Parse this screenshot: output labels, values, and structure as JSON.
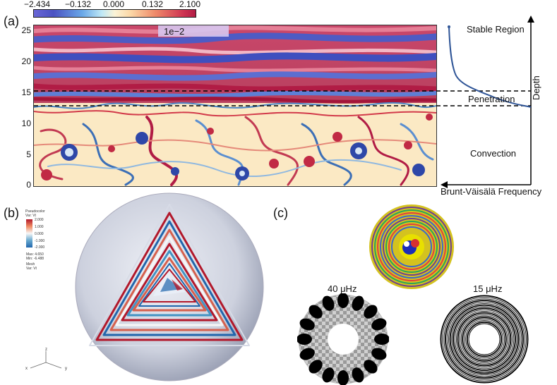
{
  "panel_a": {
    "label": "(a)",
    "colorbar": {
      "ticks": [
        "−2.434",
        "−0.132",
        "0.000",
        "0.132",
        "2.100"
      ],
      "multiplier": "1e−2"
    },
    "y_ticks": [
      "0",
      "5",
      "10",
      "15",
      "20",
      "25"
    ],
    "y_range": [
      0,
      26
    ],
    "boundaries": [
      12.6,
      15.0
    ],
    "profile": {
      "regions": [
        "Stable Region",
        "Penetration",
        "Convection"
      ],
      "y_axis_label": "Depth",
      "x_axis_label": "Brunt-Väisälä Frequency"
    }
  },
  "panel_b": {
    "label": "(b)",
    "legend": {
      "title_line1": "Pseudocolor",
      "title_line2": "Var: Vt",
      "ticks": [
        "2.000",
        "1.000",
        "0.000",
        "-1.000",
        "-2.000"
      ],
      "max": "Max: 4.650",
      "min": "Min: -6.488",
      "mesh_line1": "Mesh",
      "mesh_line2": "Var: Vt"
    },
    "axes": {
      "x": "x",
      "y": "y",
      "z": "z"
    }
  },
  "panel_c": {
    "label": "(c)",
    "freq_left": "40 μHz",
    "freq_right": "15 μHz"
  },
  "colors": {
    "red": "#b2182b",
    "blue": "#3a4fb0",
    "cream": "#fbe9c4",
    "profile_line": "#2f5597"
  }
}
